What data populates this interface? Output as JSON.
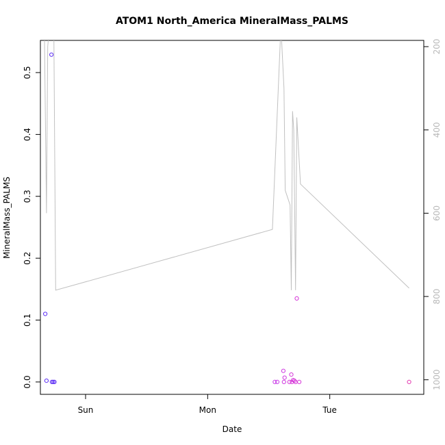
{
  "chart_data": {
    "type": "scatter",
    "title": "ATOM1 North_America MineralMass_PALMS",
    "xlabel": "Date",
    "ylabel": "MineralMass_PALMS",
    "x_ticks": [
      "Sun",
      "Mon",
      "Tue"
    ],
    "y_ticks": [
      "0.0",
      "0.1",
      "0.2",
      "0.3",
      "0.4",
      "0.5"
    ],
    "y_right_ticks": [
      "200",
      "400",
      "600",
      "800",
      "1000"
    ],
    "xlim": [
      -0.37,
      2.77
    ],
    "ylim": [
      -0.02,
      0.552
    ],
    "y_right_lim": [
      185,
      1035
    ],
    "y_right_reversed": true,
    "grid": false,
    "legend": "none",
    "x_units": "days since Sunday 00:00",
    "points": [
      {
        "x": -0.33,
        "y": 0.11,
        "color": "#5b2cf5"
      },
      {
        "x": -0.32,
        "y": 0.002,
        "color": "#5b2cf5"
      },
      {
        "x": -0.28,
        "y": 0.529,
        "color": "#5b2cf5"
      },
      {
        "x": -0.275,
        "y": 0.0,
        "color": "#5b2cf5"
      },
      {
        "x": -0.265,
        "y": 0.0,
        "color": "#5b2cf5"
      },
      {
        "x": -0.255,
        "y": 0.0,
        "color": "#5b2cf5"
      },
      {
        "x": 1.55,
        "y": 0.0,
        "color": "#c93de8"
      },
      {
        "x": 1.57,
        "y": 0.0,
        "color": "#c93de8"
      },
      {
        "x": 1.62,
        "y": 0.018,
        "color": "#cf38e0"
      },
      {
        "x": 1.625,
        "y": 0.0,
        "color": "#cf38e0"
      },
      {
        "x": 1.63,
        "y": 0.007,
        "color": "#cf38e0"
      },
      {
        "x": 1.67,
        "y": 0.0,
        "color": "#d535d8"
      },
      {
        "x": 1.685,
        "y": 0.012,
        "color": "#d535d8"
      },
      {
        "x": 1.69,
        "y": 0.0,
        "color": "#d535d8"
      },
      {
        "x": 1.7,
        "y": 0.003,
        "color": "#d535d8"
      },
      {
        "x": 1.71,
        "y": 0.002,
        "color": "#d535d8"
      },
      {
        "x": 1.72,
        "y": 0.0,
        "color": "#d535d8"
      },
      {
        "x": 1.73,
        "y": 0.135,
        "color": "#d535d8"
      },
      {
        "x": 1.75,
        "y": 0.0,
        "color": "#d535d8"
      },
      {
        "x": 2.65,
        "y": 0.0,
        "color": "#e33bb0"
      }
    ],
    "pressure_line": {
      "color": "#c0c0c0",
      "x": [
        -0.34,
        -0.32,
        -0.31,
        -0.28,
        -0.26,
        -0.245,
        1.53,
        1.6,
        1.625,
        1.635,
        1.675,
        1.685,
        1.695,
        1.705,
        1.72,
        1.73,
        1.76,
        2.65
      ],
      "y": [
        100,
        600,
        200,
        100,
        150,
        785,
        639,
        150,
        300,
        545,
        580,
        785,
        355,
        400,
        785,
        370,
        530,
        780
      ]
    }
  }
}
